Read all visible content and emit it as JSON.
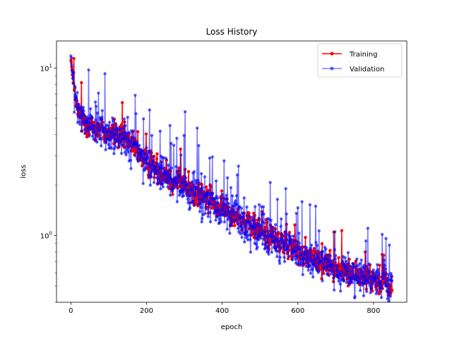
{
  "chart_data": {
    "type": "line",
    "title": "Loss History",
    "xlabel": "epoch",
    "ylabel": "loss",
    "xscale": "linear",
    "yscale": "log",
    "xlim": [
      -38,
      888
    ],
    "ylim": [
      0.4,
      14.5
    ],
    "xticks": [
      0,
      200,
      400,
      600,
      800
    ],
    "yticks": [
      1,
      10
    ],
    "yticklabels": [
      "10^0",
      "10^1"
    ],
    "grid": false,
    "legend_position": "upper-right",
    "n_epochs": 850,
    "series": [
      {
        "name": "Training",
        "color": "#ff0000",
        "marker": "circle",
        "trend": [
          [
            0,
            11.5
          ],
          [
            5,
            8.5
          ],
          [
            10,
            7.0
          ],
          [
            15,
            6.0
          ],
          [
            20,
            5.4
          ],
          [
            30,
            5.0
          ],
          [
            50,
            4.6
          ],
          [
            80,
            4.3
          ],
          [
            100,
            4.1
          ],
          [
            130,
            3.9
          ],
          [
            150,
            3.7
          ],
          [
            175,
            3.2
          ],
          [
            200,
            2.75
          ],
          [
            250,
            2.3
          ],
          [
            300,
            1.95
          ],
          [
            350,
            1.68
          ],
          [
            400,
            1.45
          ],
          [
            450,
            1.25
          ],
          [
            500,
            1.08
          ],
          [
            550,
            0.92
          ],
          [
            600,
            0.8
          ],
          [
            650,
            0.72
          ],
          [
            700,
            0.64
          ],
          [
            750,
            0.58
          ],
          [
            800,
            0.54
          ],
          [
            850,
            0.5
          ]
        ],
        "spread": 0.09,
        "spike_rate": 0.05,
        "spike_max": 0.45
      },
      {
        "name": "Validation",
        "color": "#0000ff",
        "marker": "circle",
        "trend": [
          [
            0,
            12.0
          ],
          [
            5,
            8.8
          ],
          [
            10,
            7.0
          ],
          [
            15,
            6.0
          ],
          [
            20,
            5.3
          ],
          [
            30,
            4.9
          ],
          [
            50,
            4.5
          ],
          [
            80,
            4.2
          ],
          [
            100,
            4.0
          ],
          [
            130,
            3.85
          ],
          [
            150,
            3.65
          ],
          [
            175,
            3.15
          ],
          [
            200,
            2.7
          ],
          [
            250,
            2.25
          ],
          [
            300,
            1.9
          ],
          [
            350,
            1.65
          ],
          [
            400,
            1.42
          ],
          [
            450,
            1.22
          ],
          [
            500,
            1.05
          ],
          [
            550,
            0.9
          ],
          [
            600,
            0.78
          ],
          [
            650,
            0.7
          ],
          [
            700,
            0.63
          ],
          [
            750,
            0.57
          ],
          [
            800,
            0.53
          ],
          [
            850,
            0.5
          ]
        ],
        "spread": 0.13,
        "spike_rate": 0.09,
        "spike_max": 0.8
      }
    ]
  },
  "legend": {
    "items": [
      {
        "label": "Training",
        "color": "#ff0000"
      },
      {
        "label": "Validation",
        "color": "#0000ff"
      }
    ]
  },
  "axes": {
    "x_tick_labels": [
      "0",
      "200",
      "400",
      "600",
      "800"
    ],
    "y_tick_labels": [
      {
        "base": "10",
        "exp": "0"
      },
      {
        "base": "10",
        "exp": "1"
      }
    ]
  }
}
